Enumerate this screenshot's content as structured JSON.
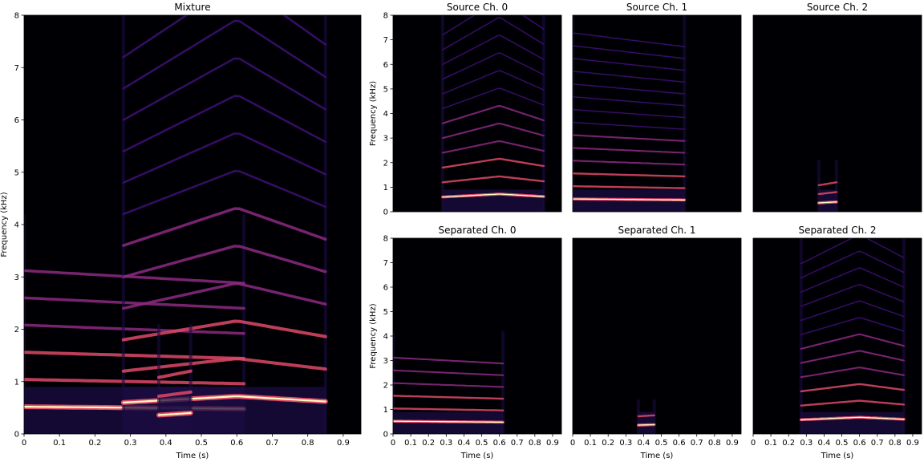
{
  "colors": {
    "background": "#000004",
    "harmonic_faint": "#3b0f70",
    "harmonic_mid": "#8c2981",
    "harmonic_bright": "#de4968",
    "fundamental_core": "#fcfdbf",
    "noise": "#1b0c41"
  },
  "chart_data": [
    {
      "id": "mixture",
      "type": "heatmap",
      "title": "Mixture",
      "xlabel": "Time (s)",
      "ylabel": "Frequency (kHz)",
      "xlim": [
        0,
        0.95
      ],
      "ylim": [
        0,
        8
      ],
      "xticks": [
        "0",
        "0.1",
        "0.2",
        "0.3",
        "0.4",
        "0.5",
        "0.6",
        "0.7",
        "0.8",
        "0.9"
      ],
      "yticks": [
        "0",
        "1",
        "2",
        "3",
        "4",
        "5",
        "6",
        "7",
        "8"
      ],
      "colormap": "magma",
      "sources": [
        {
          "t_start": 0,
          "t_end": 0.62,
          "f0": [
            [
              0,
              0.52
            ],
            [
              0.62,
              0.48
            ]
          ],
          "harmonics": 6
        },
        {
          "t_start": 0.28,
          "t_end": 0.85,
          "f0": [
            [
              0.28,
              0.6
            ],
            [
              0.6,
              0.72
            ],
            [
              0.85,
              0.62
            ]
          ],
          "harmonics": 12
        },
        {
          "t_start": 0.38,
          "t_end": 0.47,
          "f0": [
            [
              0.38,
              0.36
            ],
            [
              0.47,
              0.4
            ]
          ],
          "harmonics": 3
        }
      ]
    },
    {
      "id": "source0",
      "type": "heatmap",
      "title": "Source Ch. 0",
      "xlabel": "",
      "ylabel": "Frequency (kHz)",
      "xlim": [
        0,
        0.95
      ],
      "ylim": [
        0,
        8
      ],
      "xticks": [],
      "yticks": [
        "0",
        "1",
        "2",
        "3",
        "4",
        "5",
        "6",
        "7",
        "8"
      ],
      "colormap": "magma",
      "sources": [
        {
          "t_start": 0.28,
          "t_end": 0.85,
          "f0": [
            [
              0.28,
              0.6
            ],
            [
              0.6,
              0.72
            ],
            [
              0.85,
              0.62
            ]
          ],
          "harmonics": 12
        }
      ]
    },
    {
      "id": "source1",
      "type": "heatmap",
      "title": "Source Ch. 1",
      "xlabel": "",
      "ylabel": "",
      "xlim": [
        0,
        0.95
      ],
      "ylim": [
        0,
        8
      ],
      "xticks": [],
      "yticks": [],
      "colormap": "magma",
      "sources": [
        {
          "t_start": 0,
          "t_end": 0.63,
          "f0": [
            [
              0,
              0.52
            ],
            [
              0.63,
              0.48
            ]
          ],
          "harmonics": 14
        }
      ]
    },
    {
      "id": "source2",
      "type": "heatmap",
      "title": "Source Ch. 2",
      "xlabel": "",
      "ylabel": "",
      "xlim": [
        0,
        0.95
      ],
      "ylim": [
        0,
        8
      ],
      "xticks": [],
      "yticks": [],
      "colormap": "magma",
      "sources": [
        {
          "t_start": 0.37,
          "t_end": 0.47,
          "f0": [
            [
              0.37,
              0.36
            ],
            [
              0.47,
              0.4
            ]
          ],
          "harmonics": 3
        }
      ]
    },
    {
      "id": "separated0",
      "type": "heatmap",
      "title": "Separated Ch. 0",
      "xlabel": "Time (s)",
      "ylabel": "Frequency (kHz)",
      "xlim": [
        0,
        0.95
      ],
      "ylim": [
        0,
        8
      ],
      "xticks": [
        "0",
        "0.1",
        "0.2",
        "0.3",
        "0.4",
        "0.5",
        "0.6",
        "0.7",
        "0.8",
        "0.9"
      ],
      "yticks": [
        "0",
        "1",
        "2",
        "3",
        "4",
        "5",
        "6",
        "7",
        "8"
      ],
      "colormap": "magma",
      "sources": [
        {
          "t_start": 0,
          "t_end": 0.62,
          "f0": [
            [
              0,
              0.52
            ],
            [
              0.62,
              0.48
            ]
          ],
          "harmonics": 6
        }
      ]
    },
    {
      "id": "separated1",
      "type": "heatmap",
      "title": "Separated Ch. 1",
      "xlabel": "Time (s)",
      "ylabel": "",
      "xlim": [
        0,
        0.95
      ],
      "ylim": [
        0,
        8
      ],
      "xticks": [
        "0",
        "0.1",
        "0.2",
        "0.3",
        "0.4",
        "0.5",
        "0.6",
        "0.7",
        "0.8",
        "0.9"
      ],
      "yticks": [],
      "colormap": "magma",
      "sources": [
        {
          "t_start": 0.37,
          "t_end": 0.46,
          "f0": [
            [
              0.37,
              0.36
            ],
            [
              0.46,
              0.38
            ]
          ],
          "harmonics": 2
        }
      ]
    },
    {
      "id": "separated2",
      "type": "heatmap",
      "title": "Separated Ch. 2",
      "xlabel": "Time (s)",
      "ylabel": "",
      "xlim": [
        0,
        0.95
      ],
      "ylim": [
        0,
        8
      ],
      "xticks": [
        "0",
        "0.1",
        "0.2",
        "0.3",
        "0.4",
        "0.5",
        "0.6",
        "0.7",
        "0.8",
        "0.9"
      ],
      "yticks": [],
      "colormap": "magma",
      "sources": [
        {
          "t_start": 0.27,
          "t_end": 0.85,
          "f0": [
            [
              0.27,
              0.58
            ],
            [
              0.6,
              0.68
            ],
            [
              0.85,
              0.6
            ]
          ],
          "harmonics": 12
        }
      ]
    }
  ]
}
